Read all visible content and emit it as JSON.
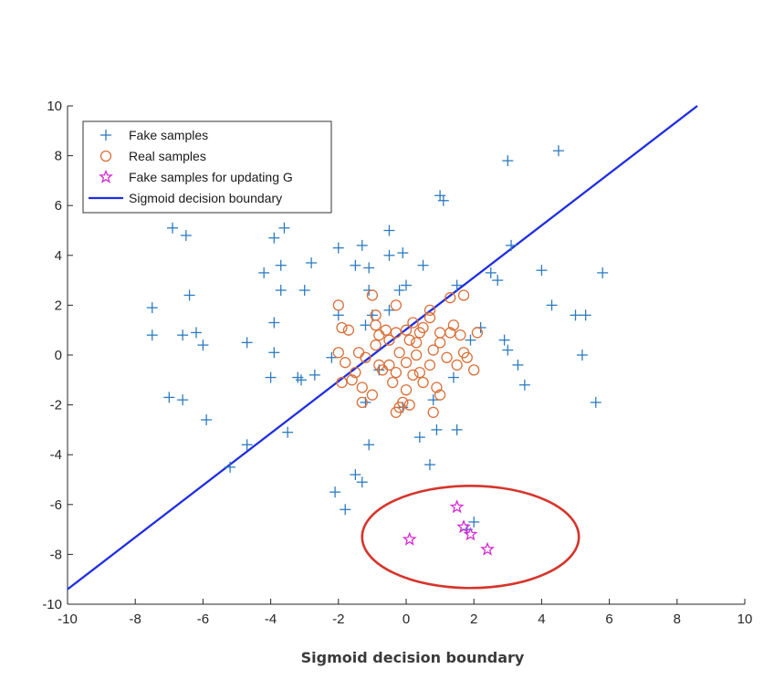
{
  "chart_data": {
    "type": "scatter",
    "title": "",
    "xlabel": "Sigmoid decision boundary",
    "ylabel": "",
    "xlim": [
      -10,
      10
    ],
    "ylim": [
      -10,
      10
    ],
    "xticks": [
      -10,
      -8,
      -6,
      -4,
      -2,
      0,
      2,
      4,
      6,
      8,
      10
    ],
    "yticks": [
      -10,
      -8,
      -6,
      -4,
      -2,
      0,
      2,
      4,
      6,
      8,
      10
    ],
    "grid": false,
    "legend_position": "top-left",
    "series": [
      {
        "name": "Fake samples",
        "marker": "plus",
        "color": "#2e7bbf",
        "points": [
          [
            -7.5,
            1.9
          ],
          [
            -7.5,
            0.8
          ],
          [
            -6.9,
            5.1
          ],
          [
            -6.5,
            4.8
          ],
          [
            -6.4,
            2.4
          ],
          [
            -6.6,
            0.8
          ],
          [
            -6.2,
            0.9
          ],
          [
            -6.0,
            0.4
          ],
          [
            -7.0,
            -1.7
          ],
          [
            -6.6,
            -1.8
          ],
          [
            -5.9,
            -2.6
          ],
          [
            -4.7,
            0.5
          ],
          [
            -4.7,
            -3.6
          ],
          [
            -5.2,
            -4.5
          ],
          [
            -4.2,
            3.3
          ],
          [
            -3.9,
            4.7
          ],
          [
            -3.6,
            5.1
          ],
          [
            -3.7,
            3.6
          ],
          [
            -3.7,
            2.6
          ],
          [
            -3.9,
            1.3
          ],
          [
            -3.9,
            0.1
          ],
          [
            -4.0,
            -0.9
          ],
          [
            -3.2,
            -0.9
          ],
          [
            -3.1,
            -1.0
          ],
          [
            -3.5,
            -3.1
          ],
          [
            -2.8,
            3.7
          ],
          [
            -3.0,
            2.6
          ],
          [
            -2.7,
            -0.8
          ],
          [
            -2.0,
            4.3
          ],
          [
            -1.5,
            3.6
          ],
          [
            -2.0,
            1.6
          ],
          [
            -2.2,
            -0.1
          ],
          [
            -1.3,
            4.4
          ],
          [
            -1.1,
            3.5
          ],
          [
            -1.1,
            2.6
          ],
          [
            -1.0,
            1.6
          ],
          [
            -1.2,
            1.2
          ],
          [
            -0.8,
            -0.6
          ],
          [
            -1.2,
            -1.9
          ],
          [
            -1.1,
            -3.6
          ],
          [
            -1.5,
            -4.8
          ],
          [
            -1.3,
            -5.1
          ],
          [
            -2.1,
            -5.5
          ],
          [
            -1.8,
            -6.2
          ],
          [
            -0.5,
            5.0
          ],
          [
            -0.1,
            4.1
          ],
          [
            -0.5,
            4.0
          ],
          [
            -0.2,
            2.6
          ],
          [
            -0.5,
            1.8
          ],
          [
            0.0,
            2.8
          ],
          [
            -0.1,
            -2.1
          ],
          [
            0.5,
            3.6
          ],
          [
            0.4,
            -3.3
          ],
          [
            0.7,
            -4.4
          ],
          [
            0.9,
            -3.0
          ],
          [
            0.8,
            -1.8
          ],
          [
            1.0,
            6.4
          ],
          [
            1.1,
            6.2
          ],
          [
            1.5,
            2.8
          ],
          [
            1.4,
            -0.9
          ],
          [
            1.5,
            -3.0
          ],
          [
            1.9,
            0.6
          ],
          [
            2.2,
            1.1
          ],
          [
            2.5,
            3.3
          ],
          [
            2.7,
            3.0
          ],
          [
            2.9,
            0.6
          ],
          [
            3.0,
            0.2
          ],
          [
            3.0,
            7.8
          ],
          [
            3.1,
            4.4
          ],
          [
            3.3,
            -0.4
          ],
          [
            3.5,
            -1.2
          ],
          [
            4.0,
            3.4
          ],
          [
            4.3,
            2.0
          ],
          [
            4.5,
            8.2
          ],
          [
            5.0,
            1.6
          ],
          [
            5.3,
            1.6
          ],
          [
            5.2,
            0.0
          ],
          [
            5.6,
            -1.9
          ],
          [
            5.8,
            3.3
          ],
          [
            2.0,
            -6.7
          ],
          [
            1.8,
            -7.0
          ]
        ]
      },
      {
        "name": "Real samples",
        "marker": "circle",
        "color": "#d9703a",
        "points": [
          [
            -2.0,
            2.0
          ],
          [
            -1.9,
            1.1
          ],
          [
            -1.7,
            1.0
          ],
          [
            -2.0,
            0.1
          ],
          [
            -1.8,
            -0.3
          ],
          [
            -1.5,
            -0.7
          ],
          [
            -1.6,
            -1.0
          ],
          [
            -1.9,
            -1.1
          ],
          [
            -1.3,
            -1.3
          ],
          [
            -1.4,
            0.1
          ],
          [
            -1.2,
            -0.1
          ],
          [
            -1.0,
            2.4
          ],
          [
            -0.9,
            1.6
          ],
          [
            -0.9,
            1.2
          ],
          [
            -0.8,
            0.8
          ],
          [
            -0.9,
            0.4
          ],
          [
            -0.8,
            -0.4
          ],
          [
            -1.0,
            -1.6
          ],
          [
            -1.3,
            -1.9
          ],
          [
            -0.7,
            -0.6
          ],
          [
            -0.5,
            0.6
          ],
          [
            -0.5,
            -0.4
          ],
          [
            -0.3,
            2.0
          ],
          [
            -0.3,
            0.9
          ],
          [
            -0.2,
            0.1
          ],
          [
            -0.3,
            -0.7
          ],
          [
            -0.2,
            -2.1
          ],
          [
            -0.3,
            -2.3
          ],
          [
            -0.1,
            -1.9
          ],
          [
            0.0,
            1.0
          ],
          [
            0.1,
            0.6
          ],
          [
            0.0,
            -0.3
          ],
          [
            0.0,
            -1.4
          ],
          [
            0.1,
            -2.0
          ],
          [
            0.2,
            1.3
          ],
          [
            0.3,
            0.5
          ],
          [
            0.3,
            0.0
          ],
          [
            0.4,
            -0.7
          ],
          [
            0.5,
            -1.1
          ],
          [
            0.4,
            0.9
          ],
          [
            0.7,
            1.8
          ],
          [
            0.7,
            1.5
          ],
          [
            0.8,
            0.2
          ],
          [
            0.7,
            -0.4
          ],
          [
            0.9,
            -1.3
          ],
          [
            0.8,
            -2.3
          ],
          [
            1.0,
            0.9
          ],
          [
            1.0,
            0.5
          ],
          [
            1.2,
            -0.1
          ],
          [
            1.3,
            0.9
          ],
          [
            1.3,
            2.3
          ],
          [
            1.4,
            1.2
          ],
          [
            1.5,
            -0.4
          ],
          [
            1.7,
            2.4
          ],
          [
            1.6,
            0.8
          ],
          [
            1.7,
            0.1
          ],
          [
            1.8,
            -0.1
          ],
          [
            2.0,
            -0.6
          ],
          [
            2.1,
            0.9
          ],
          [
            -0.6,
            1.0
          ],
          [
            0.2,
            -0.8
          ],
          [
            -0.4,
            -1.1
          ],
          [
            1.0,
            -1.6
          ],
          [
            0.5,
            1.1
          ]
        ]
      },
      {
        "name": "Fake samples for updating G",
        "marker": "star",
        "color": "#d62ad6",
        "points": [
          [
            0.1,
            -7.4
          ],
          [
            1.5,
            -6.1
          ],
          [
            1.7,
            -6.9
          ],
          [
            1.9,
            -7.2
          ],
          [
            2.4,
            -7.8
          ]
        ]
      },
      {
        "name": "Sigmoid decision boundary",
        "marker": "line",
        "color": "#1f2ee0",
        "points": [
          [
            -10,
            -9.4
          ],
          [
            8.6,
            10.0
          ]
        ]
      }
    ]
  },
  "annotation": {
    "shape": "ellipse",
    "color": "#d6352b",
    "center": [
      1.9,
      -7.3
    ],
    "radius": [
      3.2,
      2.05
    ]
  }
}
